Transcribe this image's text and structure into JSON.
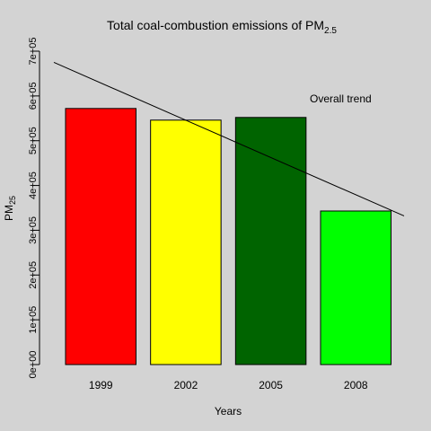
{
  "chart_data": {
    "type": "bar",
    "title": "Total coal-combustion emissions of PM",
    "title_subscript": "2.5",
    "xlabel": "Years",
    "ylabel": "PM",
    "ylabel_subscript": "25",
    "categories": [
      "1999",
      "2002",
      "2005",
      "2008"
    ],
    "values": [
      572000,
      546000,
      552000,
      343000
    ],
    "colors": [
      "#ff0000",
      "#ffff00",
      "#006400",
      "#00ff00"
    ],
    "ylim": [
      0,
      700000
    ],
    "yticks": [
      0,
      100000,
      200000,
      300000,
      400000,
      500000,
      600000,
      700000
    ],
    "ytick_labels": [
      "0e+00",
      "1e+05",
      "2e+05",
      "3e+05",
      "4e+05",
      "5e+05",
      "6e+05",
      "7e+05"
    ],
    "trend": {
      "start": 675000,
      "end": 332000
    },
    "annotation": "Overall trend",
    "background": "#d3d3d3",
    "grid": false,
    "legend": "none"
  }
}
